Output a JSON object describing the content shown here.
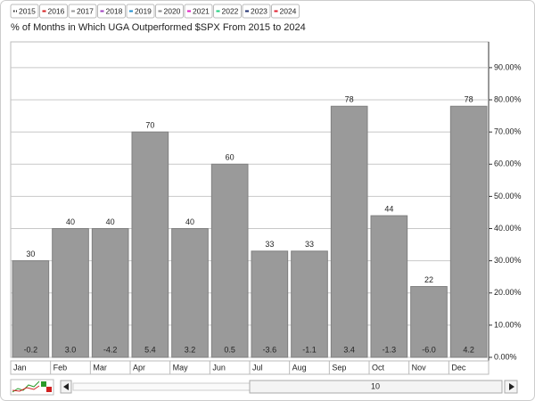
{
  "chart_data": {
    "type": "bar",
    "title": "% of Months in Which UGA Outperformed $SPX From 2015 to 2024",
    "legend": [
      {
        "name": "2015",
        "color": "#222222"
      },
      {
        "name": "2016",
        "color": "#d62020"
      },
      {
        "name": "2017",
        "color": "#999999"
      },
      {
        "name": "2018",
        "color": "#a040c0"
      },
      {
        "name": "2019",
        "color": "#2090d0"
      },
      {
        "name": "2020",
        "color": "#888888"
      },
      {
        "name": "2021",
        "color": "#e020c0"
      },
      {
        "name": "2022",
        "color": "#20d080"
      },
      {
        "name": "2023",
        "color": "#203070"
      },
      {
        "name": "2024",
        "color": "#e02030"
      }
    ],
    "categories": [
      "Jan",
      "Feb",
      "Mar",
      "Apr",
      "May",
      "Jun",
      "Jul",
      "Aug",
      "Sep",
      "Oct",
      "Nov",
      "Dec"
    ],
    "values": [
      30,
      40,
      40,
      70,
      40,
      60,
      33,
      33,
      78,
      44,
      22,
      78
    ],
    "color": "#9a9a9a",
    "returns": {
      "values": [
        -0.2,
        3.0,
        -4.2,
        5.4,
        3.2,
        0.5,
        -3.6,
        -1.1,
        3.4,
        -1.3,
        -6.0,
        4.2
      ],
      "value_labels": [
        "-0.2",
        "3.0",
        "-4.2",
        "5.4",
        "3.2",
        "0.5",
        "-3.6",
        "-1.1",
        "3.4",
        "-1.3",
        "-6.0",
        "4.2"
      ]
    },
    "ylim": [
      0,
      98
    ],
    "yticks": [
      {
        "value": 0,
        "label": "0.00%"
      },
      {
        "value": 10,
        "label": "10.00%"
      },
      {
        "value": 20,
        "label": "20.00%"
      },
      {
        "value": 30,
        "label": "30.00%"
      },
      {
        "value": 40,
        "label": "40.00%"
      },
      {
        "value": 50,
        "label": "50.00%"
      },
      {
        "value": 60,
        "label": "60.00%"
      },
      {
        "value": 70,
        "label": "70.00%"
      },
      {
        "value": 80,
        "label": "80.00%"
      },
      {
        "value": 90,
        "label": "90.00%"
      }
    ],
    "grid": true,
    "scroll_value": 10
  }
}
